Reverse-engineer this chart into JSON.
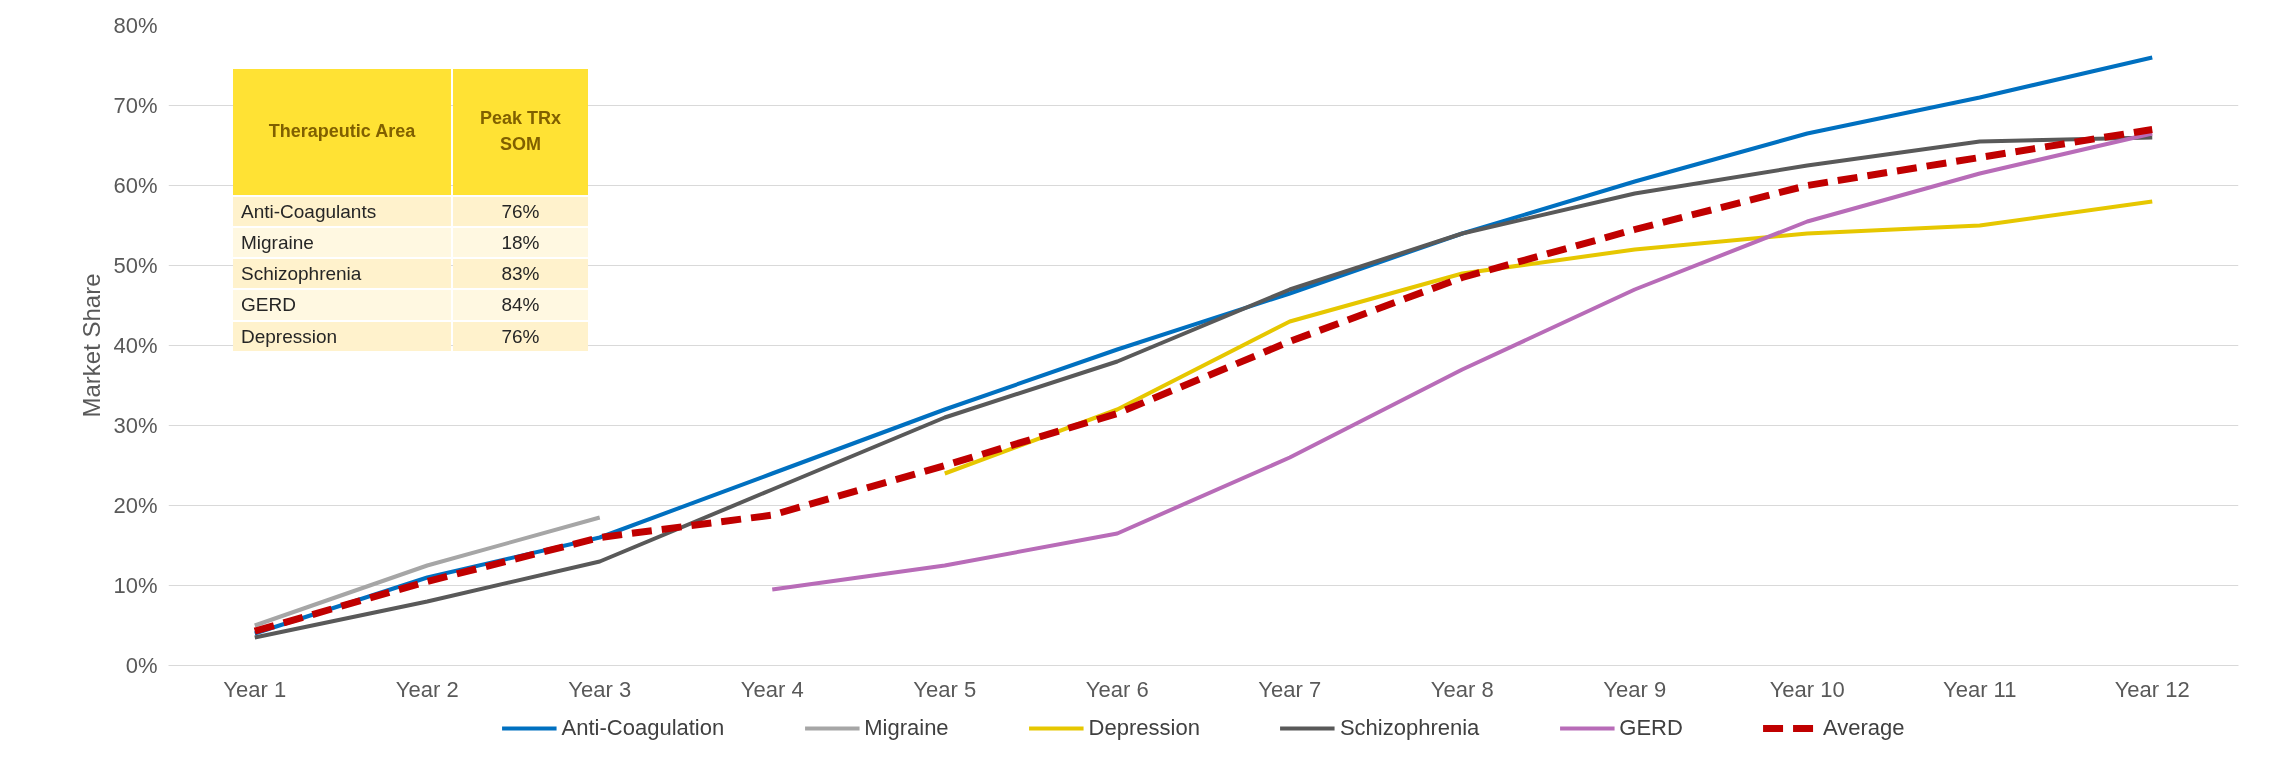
{
  "chart_data": {
    "type": "line",
    "ylabel": "Market Share",
    "categories": [
      "Year 1",
      "Year 2",
      "Year 3",
      "Year 4",
      "Year 5",
      "Year 6",
      "Year 7",
      "Year 8",
      "Year 9",
      "Year 10",
      "Year 11",
      "Year 12"
    ],
    "series": [
      {
        "name": "Anti-Coagulation",
        "color": "#0070c0",
        "values": [
          4,
          11,
          16,
          24,
          32,
          39.5,
          46.5,
          54,
          60.5,
          66.5,
          71,
          76
        ]
      },
      {
        "name": "Migraine",
        "color": "#a6a6a6",
        "values": [
          5,
          12.5,
          18.5,
          null,
          null,
          null,
          null,
          null,
          null,
          null,
          null,
          null
        ]
      },
      {
        "name": "Depression",
        "color": "#e6c700",
        "values": [
          null,
          null,
          null,
          null,
          24,
          32,
          43,
          49,
          52,
          54,
          55,
          58
        ]
      },
      {
        "name": "Schizophrenia",
        "color": "#595959",
        "values": [
          3.5,
          8,
          13,
          22,
          31,
          38,
          47,
          54,
          59,
          62.5,
          65.5,
          66
        ]
      },
      {
        "name": "GERD",
        "color": "#b86cb8",
        "values": [
          null,
          null,
          null,
          9.5,
          12.5,
          16.5,
          26,
          37,
          47,
          55.5,
          61.5,
          66.5
        ]
      },
      {
        "name": "Average",
        "color": "#c00000",
        "line_style": "dashed",
        "values": [
          4.3,
          10.5,
          16,
          18.8,
          25,
          31.5,
          40.5,
          48.5,
          54.5,
          60,
          63.5,
          67
        ]
      }
    ],
    "ylim": [
      0,
      80
    ],
    "yticks": [
      {
        "value": 0,
        "label": "0%"
      },
      {
        "value": 10,
        "label": "10%"
      },
      {
        "value": 20,
        "label": "20%"
      },
      {
        "value": 30,
        "label": "30%"
      },
      {
        "value": 40,
        "label": "40%"
      },
      {
        "value": 50,
        "label": "50%"
      },
      {
        "value": 60,
        "label": "60%"
      },
      {
        "value": 70,
        "label": "70%"
      },
      {
        "value": 80,
        "label": "80%"
      }
    ],
    "grid": "y",
    "legend": "bottom",
    "line_style": "solid",
    "marker": "none",
    "annotations": [
      "Therapeutic Area",
      "Peak TRx SOM",
      "Anti-Coagulants",
      "76%",
      "Migraine",
      "18%",
      "Schizophrenia",
      "83%",
      "GERD",
      "84%",
      "Depression",
      "76%"
    ]
  }
}
